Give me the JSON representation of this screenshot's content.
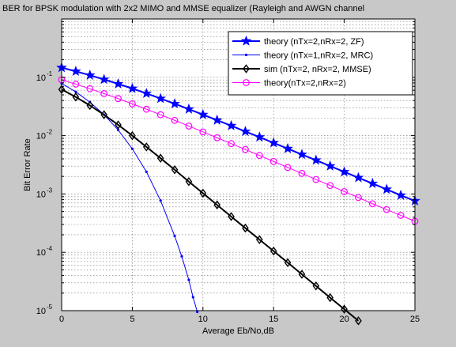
{
  "chart_data": {
    "type": "line",
    "title": "BER for BPSK modulation with 2x2 MIMO and MMSE equalizer (Rayleigh and AWGN channel",
    "xlabel": "Average Eb/No,dB",
    "ylabel": "Bit Error Rate",
    "xlim": [
      0,
      25
    ],
    "ylim": [
      1e-05,
      1
    ],
    "yscale": "log",
    "grid": true,
    "legend_position": "top-right",
    "xticks": [
      0,
      5,
      10,
      15,
      20,
      25
    ],
    "xtick_labels": [
      "0",
      "5",
      "10",
      "15",
      "20",
      "25"
    ],
    "yticks": [
      1e-05,
      0.0001,
      0.001,
      0.01,
      0.1
    ],
    "ytick_labels": [
      {
        "base": "10",
        "exp": "-5"
      },
      {
        "base": "10",
        "exp": "-4"
      },
      {
        "base": "10",
        "exp": "-3"
      },
      {
        "base": "10",
        "exp": "-2"
      },
      {
        "base": "10",
        "exp": "-1"
      }
    ],
    "series": [
      {
        "name": "theory (nTx=2,nRx=2, ZF)",
        "color": "#0000ff",
        "marker": "star",
        "line_width": 2,
        "x": [
          0,
          1,
          2,
          3,
          4,
          5,
          6,
          7,
          8,
          9,
          10,
          11,
          12,
          13,
          14,
          15,
          16,
          17,
          18,
          19,
          20,
          21,
          22,
          23,
          24,
          25
        ],
        "y": [
          0.1464,
          0.1267,
          0.1085,
          0.0919,
          0.0771,
          0.0642,
          0.0529,
          0.0433,
          0.0352,
          0.0285,
          0.0229,
          0.0184,
          0.0148,
          0.0118,
          0.00944,
          0.00752,
          0.00599,
          0.00476,
          0.00379,
          0.00301,
          0.00239,
          0.0019,
          0.00151,
          0.0012,
          0.00095,
          0.00076
        ]
      },
      {
        "name": "theory (nTx=1,nRx=2, MRC)",
        "color": "#0000ff",
        "marker": "point",
        "line_width": 1,
        "x": [
          0,
          1,
          2,
          3,
          4,
          5,
          6,
          7,
          8,
          8.5,
          9,
          9.3,
          9.6
        ],
        "y": [
          0.0786,
          0.0563,
          0.0375,
          0.0229,
          0.0125,
          0.00595,
          0.0024,
          0.00077,
          0.00019,
          8.5e-05,
          3.36e-05,
          1.7e-05,
          9.5e-06
        ]
      },
      {
        "name": "sim (nTx=2, nRx=2, MMSE)",
        "color": "#000000",
        "marker": "diamond",
        "line_width": 2,
        "x": [
          0,
          1,
          2,
          3,
          4,
          5,
          6,
          7,
          8,
          9,
          10,
          11,
          12,
          13,
          14,
          15,
          16,
          17,
          18,
          19,
          20,
          21
        ],
        "y": [
          0.062,
          0.046,
          0.033,
          0.0228,
          0.0153,
          0.01,
          0.0064,
          0.0041,
          0.0026,
          0.00163,
          0.00103,
          0.00065,
          0.00041,
          0.00026,
          0.000165,
          0.000105,
          6.65e-05,
          4.2e-05,
          2.65e-05,
          1.67e-05,
          1.06e-05,
          6.7e-06
        ]
      },
      {
        "name": "theory(nTx=2,nRx=2)",
        "color": "#ff00ff",
        "marker": "circle",
        "line_width": 1,
        "x": [
          0,
          1,
          2,
          3,
          4,
          5,
          6,
          7,
          8,
          9,
          10,
          11,
          12,
          13,
          14,
          15,
          16,
          17,
          18,
          19,
          20,
          21,
          22,
          23,
          24,
          25
        ],
        "y": [
          0.0908,
          0.0764,
          0.0636,
          0.0526,
          0.0431,
          0.0351,
          0.0284,
          0.0228,
          0.0183,
          0.0146,
          0.0116,
          0.00921,
          0.0073,
          0.00578,
          0.00457,
          0.00361,
          0.00285,
          0.00225,
          0.00177,
          0.0014,
          0.0011,
          0.00087,
          0.00068,
          0.00054,
          0.00043,
          0.00034
        ]
      }
    ]
  }
}
